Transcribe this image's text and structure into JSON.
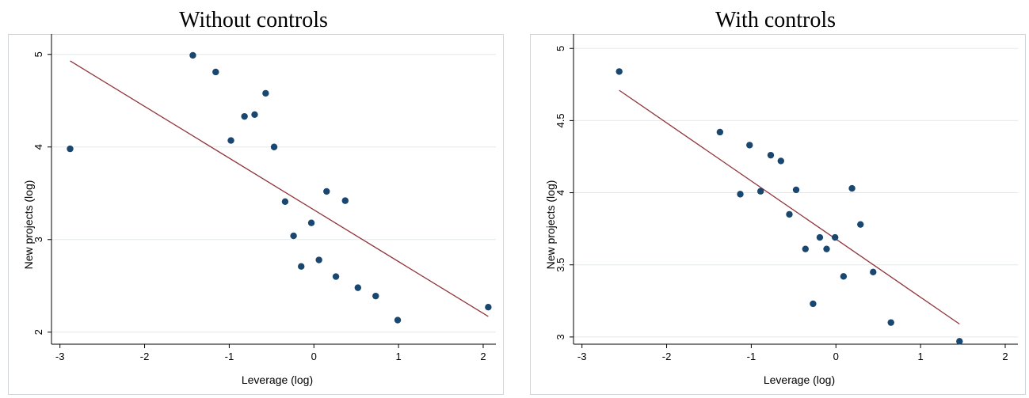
{
  "chart_data": [
    {
      "type": "scatter",
      "title": "Without controls",
      "xlabel": "Leverage (log)",
      "ylabel": "New projects (log)",
      "xlim": [
        -3.1,
        2.15
      ],
      "ylim": [
        1.87,
        5.22
      ],
      "xticks": [
        -3,
        -2,
        -1,
        0,
        1,
        2
      ],
      "yticks": [
        2,
        3,
        4,
        5
      ],
      "xtick_labels": [
        "-3",
        "-2",
        "-1",
        "0",
        "1",
        "2"
      ],
      "ytick_labels": [
        "2",
        "3",
        "4",
        "5"
      ],
      "grid": true,
      "points": {
        "x": [
          -2.88,
          -1.43,
          -1.16,
          -0.98,
          -0.82,
          -0.7,
          -0.57,
          -0.47,
          -0.34,
          -0.24,
          -0.15,
          -0.03,
          0.06,
          0.15,
          0.26,
          0.37,
          0.52,
          0.73,
          0.99,
          2.06
        ],
        "y": [
          3.98,
          4.99,
          4.81,
          4.07,
          4.33,
          4.35,
          4.58,
          4.0,
          3.41,
          3.04,
          2.71,
          3.18,
          2.78,
          3.52,
          2.6,
          3.42,
          2.48,
          2.39,
          2.13,
          2.27
        ]
      },
      "fit_line": {
        "x": [
          -2.88,
          2.06
        ],
        "y": [
          4.93,
          2.17
        ]
      },
      "colors": {
        "points": "#1a476f",
        "fit_line": "#90353b"
      }
    },
    {
      "type": "scatter",
      "title": "With controls",
      "xlabel": "Leverage (log)",
      "ylabel": "New projects (log)",
      "xlim": [
        -3.1,
        2.15
      ],
      "ylim": [
        2.95,
        5.1
      ],
      "xticks": [
        -3,
        -2,
        -1,
        0,
        1,
        2
      ],
      "yticks": [
        3,
        3.5,
        4,
        4.5,
        5
      ],
      "xtick_labels": [
        "-3",
        "-2",
        "-1",
        "0",
        "1",
        "2"
      ],
      "ytick_labels": [
        "3",
        "3.5",
        "4",
        "4.5",
        "5"
      ],
      "grid": true,
      "points": {
        "x": [
          -2.56,
          -1.37,
          -1.13,
          -1.02,
          -0.89,
          -0.77,
          -0.65,
          -0.47,
          -0.55,
          -0.36,
          -0.27,
          -0.19,
          -0.11,
          -0.01,
          0.09,
          0.19,
          0.29,
          0.44,
          0.65,
          1.46
        ],
        "y": [
          4.84,
          4.42,
          3.99,
          4.33,
          4.01,
          4.26,
          4.22,
          4.02,
          3.85,
          3.61,
          3.23,
          3.69,
          3.61,
          3.69,
          3.42,
          4.03,
          3.78,
          3.45,
          3.1,
          2.97
        ]
      },
      "fit_line": {
        "x": [
          -2.56,
          1.46
        ],
        "y": [
          4.71,
          3.09
        ]
      },
      "colors": {
        "points": "#1a476f",
        "fit_line": "#90353b"
      }
    }
  ]
}
